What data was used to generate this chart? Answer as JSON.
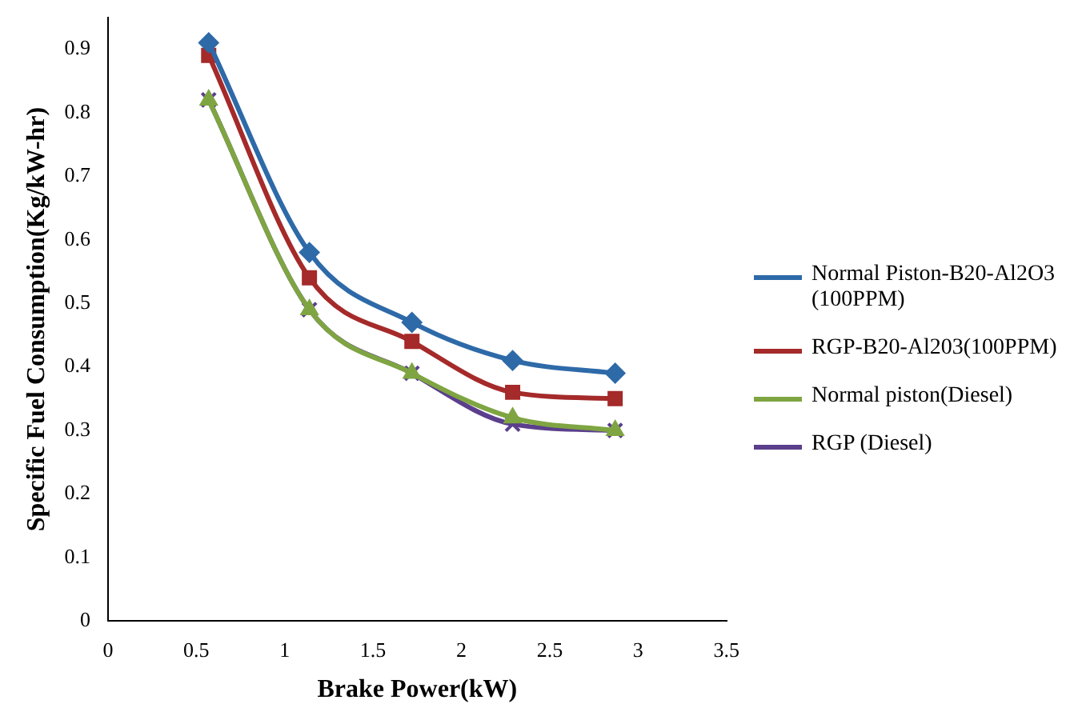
{
  "chart_data": {
    "type": "line",
    "xlabel": "Brake Power(kW)",
    "ylabel": "Specific Fuel Consumption(Kg/kW-hr)",
    "x": [
      0.57,
      1.14,
      1.72,
      2.29,
      2.87
    ],
    "xlim": [
      0,
      3.5
    ],
    "xticks": [
      0,
      0.5,
      1,
      1.5,
      2,
      2.5,
      3,
      3.5
    ],
    "ylim": [
      0,
      0.95
    ],
    "yticks": [
      0,
      0.1,
      0.2,
      0.3,
      0.4,
      0.5,
      0.6,
      0.7,
      0.8,
      0.9
    ],
    "grid": false,
    "legend": "right",
    "line_style": "solid",
    "series": [
      {
        "name": "Normal Piston-B20-Al2O3 (100PPM)",
        "color": "#2e6aa8",
        "marker": "diamond",
        "values": [
          0.91,
          0.58,
          0.47,
          0.41,
          0.39
        ]
      },
      {
        "name": "RGP-B20-Al203(100PPM)",
        "color": "#a52a2a",
        "marker": "square",
        "values": [
          0.89,
          0.54,
          0.44,
          0.36,
          0.35
        ]
      },
      {
        "name": "Normal piston(Diesel)",
        "color": "#7fa542",
        "marker": "triangle",
        "values": [
          0.82,
          0.49,
          0.39,
          0.32,
          0.3
        ]
      },
      {
        "name": "RGP (Diesel)",
        "color": "#5b3f8c",
        "marker": "cross",
        "values": [
          0.82,
          0.49,
          0.39,
          0.31,
          0.3
        ]
      }
    ]
  }
}
